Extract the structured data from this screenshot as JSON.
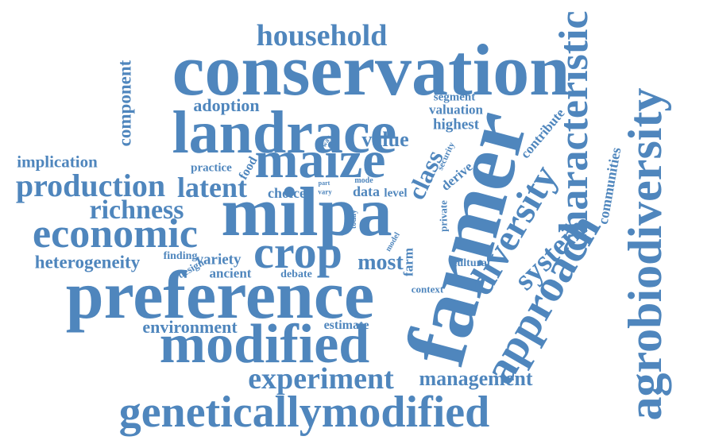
{
  "word_color": "#4f86bd",
  "words": {
    "conservation": "conservation",
    "farmer": "farmer",
    "milpa": "milpa",
    "preference": "preference",
    "landrace": "landrace",
    "modified": "modified",
    "agrobiodiversity": "agrobiodiversity",
    "characteristic": "characteristic",
    "maize": "maize",
    "approach": "approach",
    "genetically_modified": "geneticallymodified",
    "economic": "economic",
    "crop": "crop",
    "diversity": "diversity",
    "production": "production",
    "experiment": "experiment",
    "latent": "latent",
    "household": "household",
    "richness": "richness",
    "system": "system",
    "component": "component",
    "class": "class",
    "heterogeneity": "heterogeneity",
    "management": "management",
    "value": "value",
    "environment": "environment",
    "implication": "implication",
    "adoption": "adoption",
    "most": "most",
    "communities": "communities",
    "variety": "variety",
    "contribute": "contribute",
    "highest": "highest",
    "data": "data",
    "valuation": "valuation",
    "segment": "segment",
    "choice": "choice",
    "practice": "practice",
    "food": "food",
    "ancient": "ancient",
    "finding": "finding",
    "design": "design",
    "estimate": "estimate",
    "derive": "derive",
    "cultural": "cultural",
    "context": "context",
    "debate": "debate",
    "level": "level",
    "farm": "farm",
    "security": "security",
    "private": "private",
    "today": "today",
    "model": "model",
    "mode": "mode",
    "part": "part",
    "vary": "vary",
    "way": "way"
  }
}
